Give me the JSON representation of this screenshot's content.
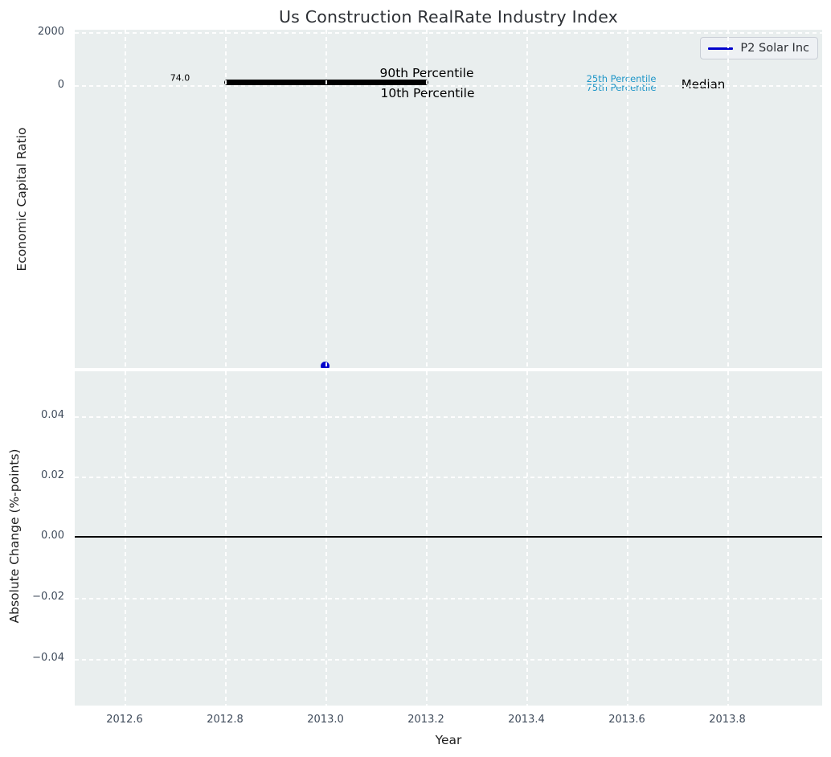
{
  "title": "Us Construction RealRate Industry Index",
  "colors": {
    "figure_background": "#ffffff",
    "plot_background": "#e9eeee",
    "grid": "#ffffff",
    "tick_label": "#3f4b5b",
    "axis_label": "#1f1f1f",
    "title_text": "#2d3035",
    "series_blue": "#0000cc",
    "percentile_cyan": "#1e96c8",
    "band_black": "#000000"
  },
  "top_chart": {
    "ylabel": "Economic Capital Ratio",
    "yticks": [
      "2000",
      "0"
    ],
    "annotations": {
      "value_label": "74.0",
      "p90": "90th Percentile",
      "p10": "10th Percentile",
      "p25": "25th Percentile",
      "p75": "75th Percentile",
      "median": "Median"
    },
    "legend_label": "P2 Solar Inc"
  },
  "bottom_chart": {
    "ylabel": "Absolute Change (%-points)",
    "xlabel": "Year",
    "yticks": [
      "0.04",
      "0.02",
      "0.00",
      "−0.02",
      "−0.04"
    ],
    "xticks": [
      "2012.6",
      "2012.8",
      "2013.0",
      "2013.2",
      "2013.4",
      "2013.6",
      "2013.8"
    ]
  },
  "chart_data": [
    {
      "type": "line",
      "subplot": "top",
      "title": "Us Construction RealRate Industry Index",
      "ylabel": "Economic Capital Ratio",
      "xlim": [
        2012.5,
        2014.0
      ],
      "yticks": [
        0,
        2000
      ],
      "grid": true,
      "legend_entries": [
        "P2 Solar Inc"
      ],
      "legend_position": "upper right",
      "series": [
        {
          "name": "10th-90th Percentile range (industry band)",
          "color": "#000000",
          "style": "thick solid line",
          "x": [
            2012.8,
            2013.2
          ],
          "y": [
            74.0,
            74.0
          ]
        },
        {
          "name": "P2 Solar Inc",
          "color": "#0000cc",
          "style": "point marker",
          "x": [
            2013.0
          ],
          "y_estimate": [
            -11000
          ],
          "note": "marker clipped at bottom edge of top subplot; value below labeled axis range"
        }
      ],
      "annotations": [
        {
          "text": "74.0",
          "x": 2012.71,
          "y": 74,
          "color": "#000000"
        },
        {
          "text": "90th Percentile",
          "x": 2013.05,
          "y": "just above band",
          "color": "#000000"
        },
        {
          "text": "10th Percentile",
          "x": 2013.05,
          "y": "just below band",
          "color": "#000000"
        },
        {
          "text": "25th Percentile",
          "x": 2013.59,
          "y": "near 0",
          "color": "#1e96c8"
        },
        {
          "text": "75th Percentile",
          "x": 2013.59,
          "y": "near 0",
          "color": "#1e96c8"
        },
        {
          "text": "Median",
          "x": 2013.75,
          "y": "near 0",
          "color": "#000000"
        }
      ]
    },
    {
      "type": "line",
      "subplot": "bottom",
      "ylabel": "Absolute Change (%-points)",
      "xlabel": "Year",
      "xticks": [
        2012.6,
        2012.8,
        2013.0,
        2013.2,
        2013.4,
        2013.6,
        2013.8
      ],
      "yticks": [
        0.04,
        0.02,
        0.0,
        -0.02,
        -0.04
      ],
      "ylim": [
        -0.055,
        0.055
      ],
      "xlim": [
        2012.5,
        2014.0
      ],
      "grid": true,
      "series": [
        {
          "name": "zero reference line",
          "color": "#000000",
          "style": "solid horizontal line",
          "x": [
            2012.5,
            2014.0
          ],
          "y": [
            0,
            0
          ]
        }
      ]
    }
  ]
}
